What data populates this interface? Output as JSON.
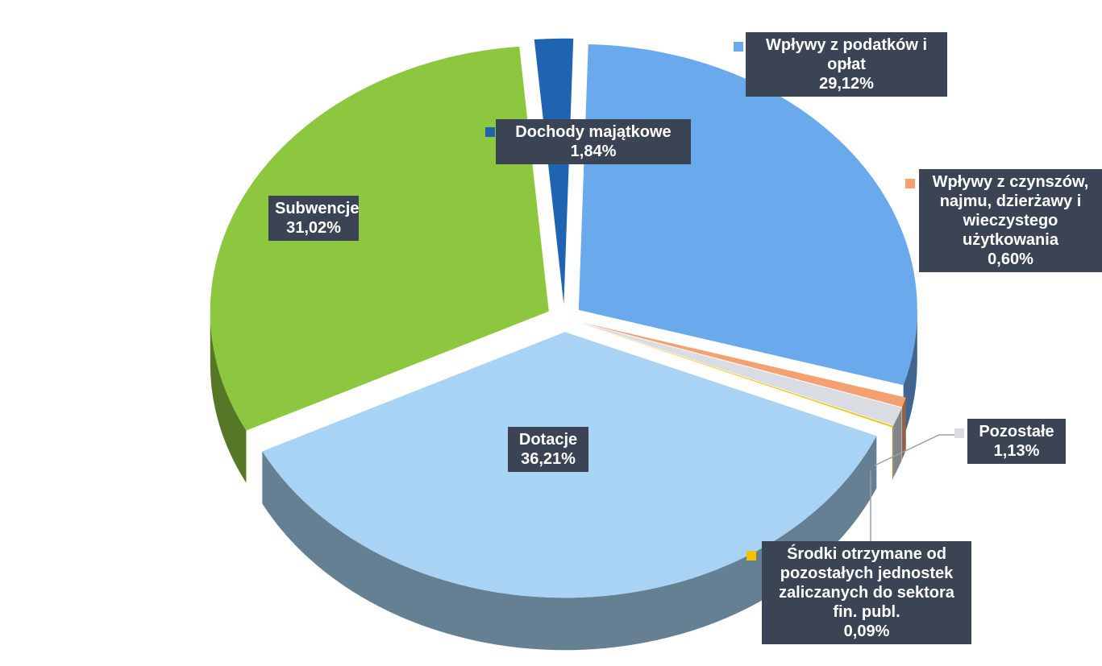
{
  "chart_data": {
    "type": "pie",
    "categories": [
      "Dochody majątkowe",
      "Wpływy z podatków i opłat",
      "Wpływy z czynszów, najmu, dzierżawy i wieczystego użytkowania",
      "Pozostałe",
      "Środki otrzymane od pozostałych jednostek zaliczanych do sektora fin. publ.",
      "Dotacje",
      "Subwencje"
    ],
    "values": [
      1.84,
      29.12,
      0.6,
      1.13,
      0.09,
      36.21,
      31.02
    ],
    "value_labels": [
      "1,84%",
      "29,12%",
      "0,60%",
      "1,13%",
      "0,09%",
      "36,21%",
      "31,02%"
    ],
    "colors": [
      "#1f64b0",
      "#6aa9ec",
      "#f4a070",
      "#d9dde3",
      "#f2c200",
      "#a9d3f5",
      "#8dc63f"
    ]
  }
}
